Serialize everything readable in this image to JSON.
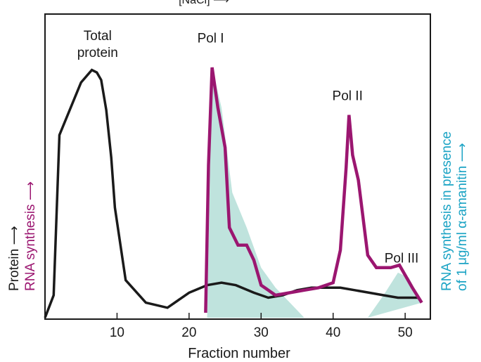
{
  "chart_data": {
    "type": "line",
    "top_label": "[NaCl] ⟶",
    "xlabel": "Fraction number",
    "ylabel_left_black": "Protein ⟶",
    "ylabel_left_magenta": "RNA synthesis ⟶",
    "ylabel_right": [
      "RNA synthesis in presence",
      "of 1 μg/ml α-amanitin ⟶"
    ],
    "xlim": [
      0,
      53.5
    ],
    "ylim": [
      0,
      1
    ],
    "x_ticks": [
      "10",
      "20",
      "30",
      "40",
      "50"
    ],
    "x_tick_values": [
      10,
      20,
      30,
      40,
      50
    ],
    "colors": {
      "protein": "#1a1a1a",
      "rna": "#9b1670",
      "amanitin_fill": "#bfe3dd",
      "right_label": "#1aa3c4"
    },
    "series": [
      {
        "key": "protein",
        "x": [
          0,
          1.2,
          2,
          5,
          6.5,
          7.2,
          7.8,
          8.5,
          9.2,
          9.7,
          11.2,
          14,
          17,
          20,
          22.5,
          24.5,
          26.5,
          29,
          31,
          33,
          35,
          37,
          39,
          41,
          43,
          45,
          47,
          49,
          51,
          52
        ],
        "y": [
          0,
          0.09,
          0.73,
          0.94,
          0.99,
          0.98,
          0.95,
          0.83,
          0.64,
          0.44,
          0.15,
          0.06,
          0.04,
          0.1,
          0.13,
          0.14,
          0.13,
          0.1,
          0.08,
          0.09,
          0.11,
          0.12,
          0.12,
          0.12,
          0.11,
          0.1,
          0.09,
          0.08,
          0.08,
          0.08
        ]
      },
      {
        "key": "rna",
        "x": [
          22.3,
          22.7,
          23.2,
          24,
          25,
          25.6,
          26.8,
          28,
          29,
          30,
          32,
          34,
          36,
          38,
          40,
          41,
          41.8,
          42.2,
          42.7,
          43.5,
          44.8,
          46,
          48,
          49.2,
          51,
          52.3
        ],
        "y": [
          0.02,
          0.61,
          1.0,
          0.84,
          0.68,
          0.36,
          0.29,
          0.29,
          0.23,
          0.13,
          0.09,
          0.1,
          0.11,
          0.12,
          0.14,
          0.27,
          0.6,
          0.81,
          0.65,
          0.55,
          0.25,
          0.2,
          0.2,
          0.21,
          0.12,
          0.06
        ]
      }
    ],
    "shaded_regions": [
      {
        "x": [
          22.5,
          23.2,
          24.5,
          26,
          28,
          30,
          32,
          34,
          36,
          22.5
        ],
        "y": [
          0.0,
          1.0,
          0.84,
          0.5,
          0.36,
          0.2,
          0.12,
          0.06,
          0.0,
          0.0
        ]
      },
      {
        "x": [
          44.8,
          47,
          49,
          50.5,
          52.3,
          44.8
        ],
        "y": [
          0.0,
          0.09,
          0.18,
          0.16,
          0.06,
          0.0
        ]
      }
    ],
    "annotations": [
      {
        "lines": [
          "Total",
          "protein"
        ],
        "x": 7.3,
        "y": 1.11
      },
      {
        "lines": [
          "Pol I"
        ],
        "x": 23,
        "y": 1.1
      },
      {
        "lines": [
          "Pol II"
        ],
        "x": 42,
        "y": 0.87
      },
      {
        "lines": [
          "Pol III"
        ],
        "x": 49.5,
        "y": 0.22
      }
    ]
  }
}
